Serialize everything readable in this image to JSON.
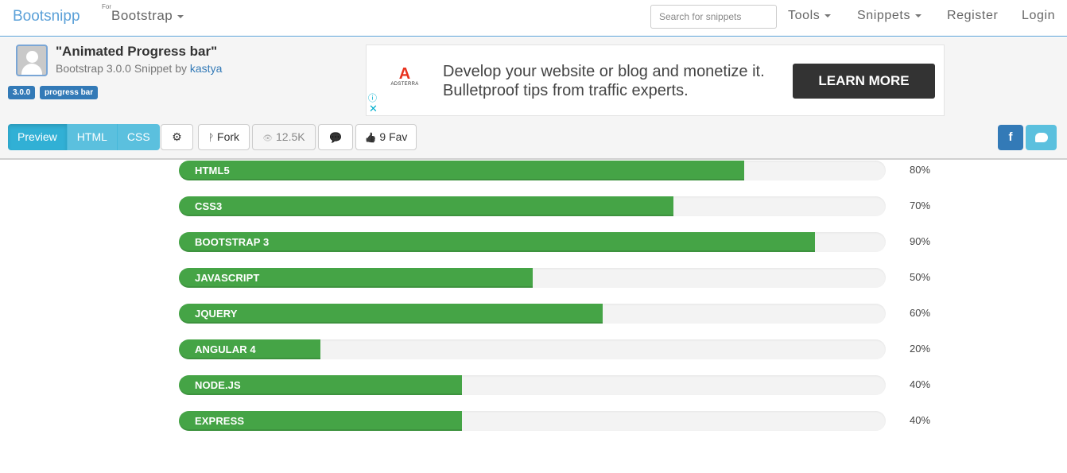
{
  "navbar": {
    "brand": "Bootsnipp",
    "for_label": "For",
    "framework_dropdown": "Bootstrap",
    "search_placeholder": "Search for snippets",
    "tools": "Tools",
    "snippets": "Snippets",
    "register": "Register",
    "login": "Login"
  },
  "snippet": {
    "title": "\"Animated Progress bar\"",
    "subtitle_prefix": "Bootstrap 3.0.0 Snippet by ",
    "author": "kastya",
    "tags": [
      "3.0.0",
      "progress bar"
    ]
  },
  "ad": {
    "logo_letter": "A",
    "logo_name": "ADSTERRA",
    "text": "Develop your website or blog and monetize it. Bulletproof tips from traffic experts.",
    "cta": "LEARN MORE",
    "info_icon": "ⓘ",
    "close_icon": "✕"
  },
  "toolbar": {
    "tabs": [
      "Preview",
      "HTML",
      "CSS"
    ],
    "active_tab": "Preview",
    "settings_icon": "⚙",
    "fork": "Fork",
    "fork_icon": "ᚹ",
    "views": "12.5K",
    "views_icon": "👁",
    "comment_icon": "💬",
    "fav": "9 Fav",
    "fav_icon": "👍",
    "facebook_icon": "f",
    "twitter_icon": "🐦"
  },
  "colors": {
    "brand": "#5aa0d8",
    "info": "#5bc0de",
    "primary": "#337ab7",
    "progress_fill": "#45a446",
    "progress_track": "#f3f3f3"
  },
  "chart_data": {
    "type": "bar",
    "orientation": "horizontal",
    "categories": [
      "HTML5",
      "CSS3",
      "BOOTSTRAP 3",
      "JAVASCRIPT",
      "JQUERY",
      "ANGULAR 4",
      "NODE.JS",
      "EXPRESS"
    ],
    "values": [
      80,
      70,
      90,
      50,
      60,
      20,
      40,
      40
    ],
    "labels": [
      "80%",
      "70%",
      "90%",
      "50%",
      "60%",
      "20%",
      "40%",
      "40%"
    ],
    "title": "",
    "xlabel": "",
    "ylabel": "",
    "xlim": [
      0,
      100
    ]
  }
}
